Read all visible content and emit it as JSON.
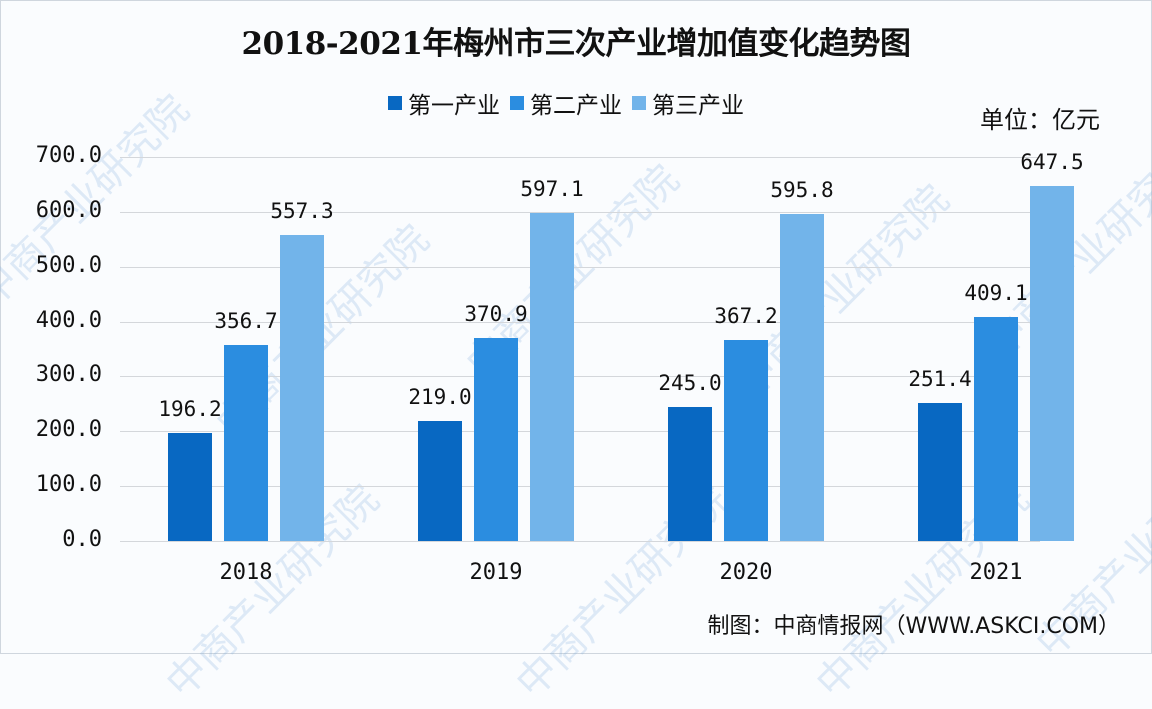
{
  "title": "2018-2021年梅州市三次产业增加值变化趋势图",
  "unit_label": "单位：亿元",
  "source_label": "制图：中商情报网（WWW.ASKCI.COM）",
  "watermark_text": "中商产业研究院",
  "legend": [
    {
      "label": "第一产业",
      "color": "#0868c2"
    },
    {
      "label": "第二产业",
      "color": "#2b8de0"
    },
    {
      "label": "第三产业",
      "color": "#72b4ea"
    }
  ],
  "y_ticks": [
    "700.0",
    "600.0",
    "500.0",
    "400.0",
    "300.0",
    "200.0",
    "100.0",
    "0.0"
  ],
  "x_labels": [
    "2018",
    "2019",
    "2020",
    "2021"
  ],
  "value_labels": {
    "primary": [
      "196.2",
      "219.0",
      "245.0",
      "251.4"
    ],
    "secondary": [
      "356.7",
      "370.9",
      "367.2",
      "409.1"
    ],
    "tertiary": [
      "557.3",
      "597.1",
      "595.8",
      "647.5"
    ]
  },
  "chart_data": {
    "type": "bar",
    "title": "2018-2021年梅州市三次产业增加值变化趋势图",
    "xlabel": "",
    "ylabel": "单位：亿元",
    "categories": [
      "2018",
      "2019",
      "2020",
      "2021"
    ],
    "series": [
      {
        "name": "第一产业",
        "values": [
          196.2,
          219.0,
          245.0,
          251.4
        ],
        "color": "#0868c2"
      },
      {
        "name": "第二产业",
        "values": [
          356.7,
          370.9,
          367.2,
          409.1
        ],
        "color": "#2b8de0"
      },
      {
        "name": "第三产业",
        "values": [
          557.3,
          597.1,
          595.8,
          647.5
        ],
        "color": "#72b4ea"
      }
    ],
    "ylim": [
      0,
      700
    ],
    "yticks": [
      0,
      100,
      200,
      300,
      400,
      500,
      600,
      700
    ],
    "grid": true,
    "legend_position": "top",
    "source": "制图：中商情报网（WWW.ASKCI.COM）"
  }
}
